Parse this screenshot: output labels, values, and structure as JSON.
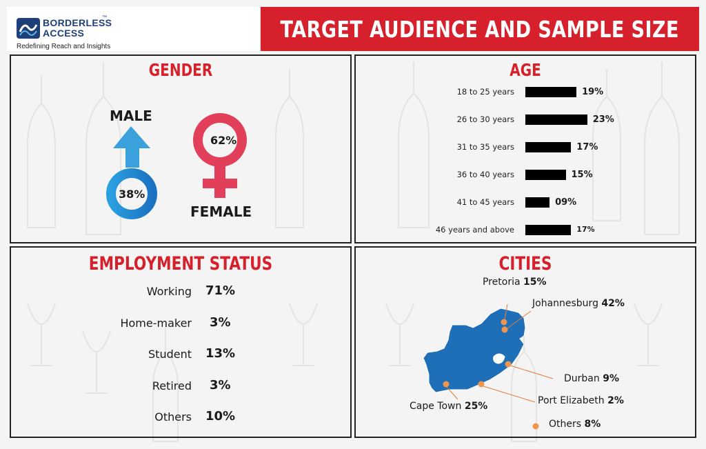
{
  "logo": {
    "line1": "BORDERLESS",
    "line2": "ACCESS",
    "tm": "™",
    "tagline": "Redefining Reach and Insights"
  },
  "header": {
    "title": "TARGET AUDIENCE AND SAMPLE SIZE"
  },
  "colors": {
    "brand_red": "#d6202b",
    "male_blue": "#2b8fd8",
    "female_red": "#e2405a",
    "map_blue": "#1e6fb7",
    "city_dot": "#f0954f"
  },
  "chart_data": [
    {
      "type": "pie",
      "title": "GENDER",
      "series": [
        {
          "name": "MALE",
          "value_label": "38%",
          "value": 38
        },
        {
          "name": "FEMALE",
          "value_label": "62%",
          "value": 62
        }
      ]
    },
    {
      "type": "bar",
      "title": "AGE",
      "categories": [
        "18 to 25 years",
        "26 to 30 years",
        "31 to 35 years",
        "36 to 40 years",
        "41 to 45 years",
        "46 years and above"
      ],
      "values": [
        19,
        23,
        17,
        15,
        9,
        17
      ],
      "value_labels": [
        "19%",
        "23%",
        "17%",
        "15%",
        "09%",
        "17%"
      ],
      "orientation": "horizontal"
    },
    {
      "type": "table",
      "title": "EMPLOYMENT STATUS",
      "categories": [
        "Working",
        "Home-maker",
        "Student",
        "Retired",
        "Others"
      ],
      "values": [
        71,
        3,
        13,
        3,
        10
      ],
      "value_labels": [
        "71%",
        "3%",
        "13%",
        "3%",
        "10%"
      ]
    },
    {
      "type": "table",
      "title": "CITIES",
      "categories": [
        "Pretoria",
        "Johannesburg",
        "Durban",
        "Port Elizabeth",
        "Cape Town",
        "Others"
      ],
      "values": [
        15,
        42,
        9,
        2,
        25,
        8
      ],
      "value_labels": [
        "15%",
        "42%",
        "9%",
        "2%",
        "25%",
        "8%"
      ]
    }
  ]
}
